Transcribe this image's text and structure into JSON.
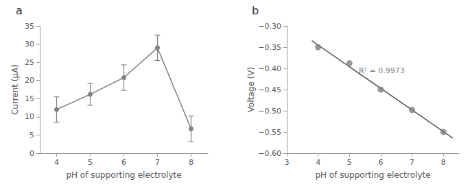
{
  "chart_data": [
    {
      "type": "line",
      "title": "a",
      "xlabel": "pH of supporting electrolyte",
      "ylabel": "Current (μA)",
      "x": [
        4,
        5,
        6,
        7,
        8
      ],
      "values": [
        12.0,
        16.2,
        20.8,
        29.0,
        6.7
      ],
      "errors": [
        3.5,
        3.0,
        3.5,
        3.5,
        3.5
      ],
      "color": "#808080",
      "marker": "circle",
      "line_style": "solid",
      "xlim": [
        3.5,
        8.5
      ],
      "ylim": [
        0,
        35
      ],
      "xticks": [
        4,
        5,
        6,
        7,
        8
      ],
      "yticks": [
        0,
        5,
        10,
        15,
        20,
        25,
        30,
        35
      ],
      "grid": false
    },
    {
      "type": "scatter",
      "title": "b",
      "xlabel": "pH of supporting electrolyte",
      "ylabel": "Voltage (V)",
      "xlim": [
        3.0,
        8.5
      ],
      "ylim": [
        -0.6,
        -0.3
      ],
      "xticks": [
        3,
        4,
        5,
        6,
        7,
        8
      ],
      "yticks": [
        {
          "value": -0.6,
          "label": "−0.60"
        },
        {
          "value": -0.55,
          "label": "−0.55"
        },
        {
          "value": -0.5,
          "label": "−0.50"
        },
        {
          "value": -0.45,
          "label": "−0.45"
        },
        {
          "value": -0.4,
          "label": "−0.40"
        },
        {
          "value": -0.35,
          "label": "−0.35"
        },
        {
          "value": -0.3,
          "label": "−0.30"
        }
      ],
      "grid": false,
      "series": [
        {
          "type": "line",
          "x": [
            3.8,
            8.3
          ],
          "values": [
            -0.335,
            -0.5645
          ],
          "color": "#555555",
          "line_style": "solid",
          "marker": "none"
        },
        {
          "type": "scatter",
          "x": [
            4,
            5,
            6,
            7,
            8
          ],
          "values": [
            -0.35,
            -0.388,
            -0.45,
            -0.498,
            -0.55
          ],
          "color": "#808080",
          "marker": "circle"
        }
      ],
      "annotations": [
        {
          "text": "R² = 0.9973",
          "x": 5.3,
          "y": -0.405
        }
      ]
    }
  ]
}
